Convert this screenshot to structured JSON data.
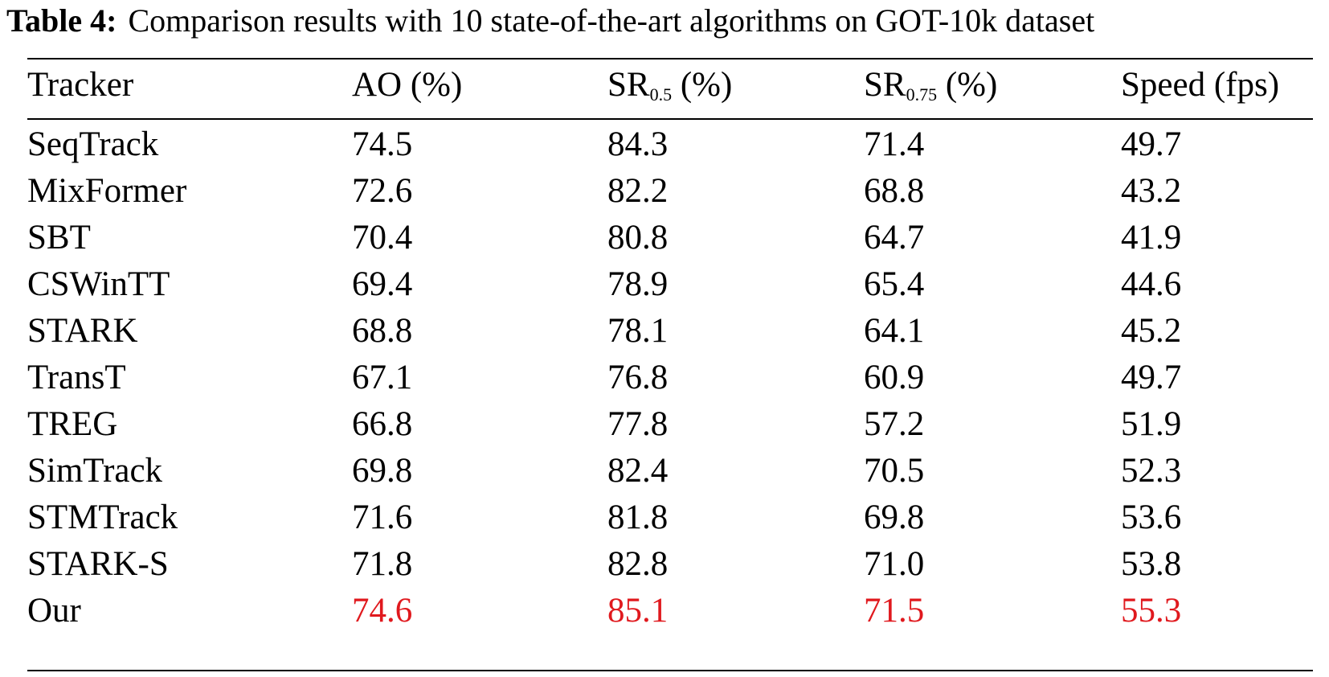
{
  "caption": {
    "label": "Table 4:",
    "text": "Comparison results with 10 state-of-the-art algorithms on GOT-10k dataset"
  },
  "table": {
    "headers": [
      {
        "main": "Tracker",
        "sub": "",
        "suffix": ""
      },
      {
        "main": "AO",
        "sub": "",
        "suffix": " (%)"
      },
      {
        "main": "SR",
        "sub": "0.5",
        "suffix": " (%)"
      },
      {
        "main": "SR",
        "sub": "0.75",
        "suffix": " (%)"
      },
      {
        "main": "Speed (fps)",
        "sub": "",
        "suffix": ""
      }
    ],
    "rows": [
      [
        "SeqTrack",
        "74.5",
        "84.3",
        "71.4",
        "49.7"
      ],
      [
        "MixFormer",
        "72.6",
        "82.2",
        "68.8",
        "43.2"
      ],
      [
        "SBT",
        "70.4",
        "80.8",
        "64.7",
        "41.9"
      ],
      [
        "CSWinTT",
        "69.4",
        "78.9",
        "65.4",
        "44.6"
      ],
      [
        "STARK",
        "68.8",
        "78.1",
        "64.1",
        "45.2"
      ],
      [
        "TransT",
        "67.1",
        "76.8",
        "60.9",
        "49.7"
      ],
      [
        "TREG",
        "66.8",
        "77.8",
        "57.2",
        "51.9"
      ],
      [
        "SimTrack",
        "69.8",
        "82.4",
        "70.5",
        "52.3"
      ],
      [
        "STMTrack",
        "71.6",
        "81.8",
        "69.8",
        "53.6"
      ],
      [
        "STARK-S",
        "71.8",
        "82.8",
        "71.0",
        "53.8"
      ],
      [
        "Our",
        "74.6",
        "85.1",
        "71.5",
        "55.3"
      ]
    ],
    "highlight_row": 10,
    "highlight_color": "#e0191e"
  }
}
